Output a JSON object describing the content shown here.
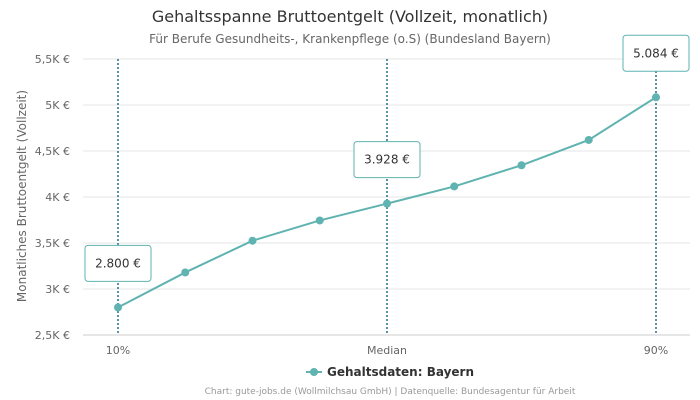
{
  "chart_data": {
    "type": "line",
    "title": "Gehaltsspanne Bruttoentgelt (Vollzeit, monatlich)",
    "subtitle": "Für Berufe Gesundheits-, Krankenpflege (o.S) (Bundesland Bayern)",
    "ylabel": "Monatliches Bruttoentgelt (Vollzeit)",
    "xlabel": "",
    "ylim": [
      2500,
      5500
    ],
    "y_ticks": [
      {
        "value": 2500,
        "label": "2,5K €"
      },
      {
        "value": 3000,
        "label": "3K €"
      },
      {
        "value": 3500,
        "label": "3,5K €"
      },
      {
        "value": 4000,
        "label": "4K €"
      },
      {
        "value": 4500,
        "label": "4,5K €"
      },
      {
        "value": 5000,
        "label": "5K €"
      },
      {
        "value": 5500,
        "label": "5,5K €"
      }
    ],
    "x_ticks": [
      {
        "index": 0,
        "label": "10%"
      },
      {
        "index": 4,
        "label": "Median"
      },
      {
        "index": 8,
        "label": "90%"
      }
    ],
    "grid": true,
    "legend_position": "bottom-center",
    "series": [
      {
        "name": "Gehaltsdaten: Bayern",
        "color": "#5fb3b0",
        "values": [
          2800,
          3180,
          3525,
          3745,
          3928,
          4115,
          4345,
          4620,
          5084
        ]
      }
    ],
    "annotations": [
      {
        "index": 0,
        "value": 2800,
        "label": "2.800 €"
      },
      {
        "index": 4,
        "value": 3928,
        "label": "3.928 €"
      },
      {
        "index": 8,
        "value": 5084,
        "label": "5.084 €"
      }
    ],
    "marker_line_color": "#1f6f8b",
    "credits": "Chart: gute-jobs.de (Wollmilchsau GmbH) | Datenquelle: Bundesagentur für Arbeit"
  }
}
